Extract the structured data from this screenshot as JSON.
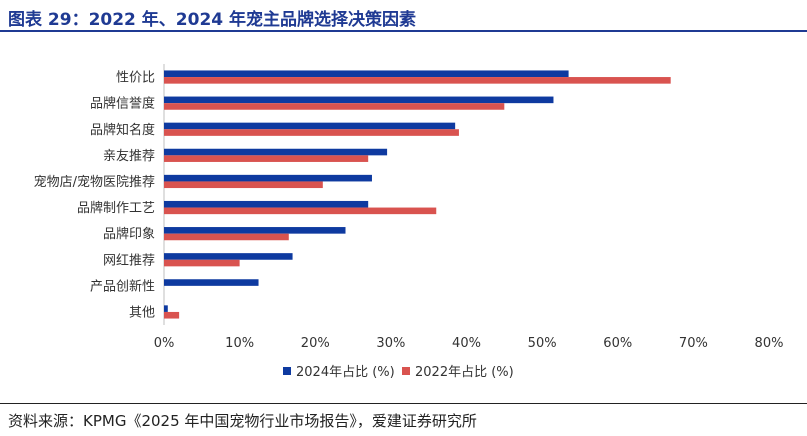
{
  "title": "图表 29：2022 年、2024 年宠主品牌选择决策因素",
  "source": "资料来源：KPMG《2025 年中国宠物行业市场报告》，爱建证券研究所",
  "colors": {
    "title": "#1f3a93",
    "series_2024": "#0e3aa0",
    "series_2022": "#d9534f"
  },
  "chart_data": {
    "type": "bar",
    "orientation": "horizontal",
    "categories": [
      "性价比",
      "品牌信誉度",
      "品牌知名度",
      "亲友推荐",
      "宠物店/宠物医院推荐",
      "品牌制作工艺",
      "品牌印象",
      "网红推荐",
      "产品创新性",
      "其他"
    ],
    "series": [
      {
        "name": "2024年占比 (%)",
        "values": [
          53.5,
          51.5,
          38.5,
          29.5,
          27.5,
          27,
          24,
          17,
          12.5,
          0.5
        ]
      },
      {
        "name": "2022年占比 (%)",
        "values": [
          67,
          45,
          39,
          27,
          21,
          36,
          16.5,
          10,
          null,
          2
        ]
      }
    ],
    "x_ticks": [
      "0%",
      "10%",
      "20%",
      "30%",
      "40%",
      "50%",
      "60%",
      "70%",
      "80%"
    ],
    "xlim": [
      0,
      80
    ],
    "grid": false,
    "legend_position": "bottom"
  }
}
